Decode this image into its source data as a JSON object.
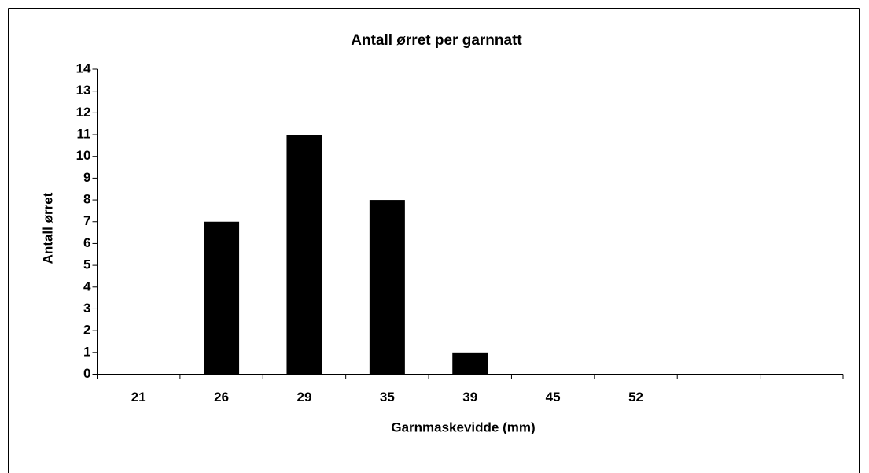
{
  "chart_data": {
    "type": "bar",
    "title": "Antall ørret per garnnatt",
    "x_label": "Garnmaskevidde (mm)",
    "y_label": "Antall ørret",
    "categories": [
      "21",
      "26",
      "29",
      "35",
      "39",
      "45",
      "52",
      null,
      null
    ],
    "values": [
      0,
      7,
      11,
      8,
      1,
      0,
      0,
      0,
      0
    ],
    "color": "#000000",
    "ylim": [
      0,
      14
    ],
    "yticks": [
      0,
      1,
      2,
      3,
      4,
      5,
      6,
      7,
      8,
      9,
      10,
      11,
      12,
      13,
      14
    ],
    "grid": false
  }
}
